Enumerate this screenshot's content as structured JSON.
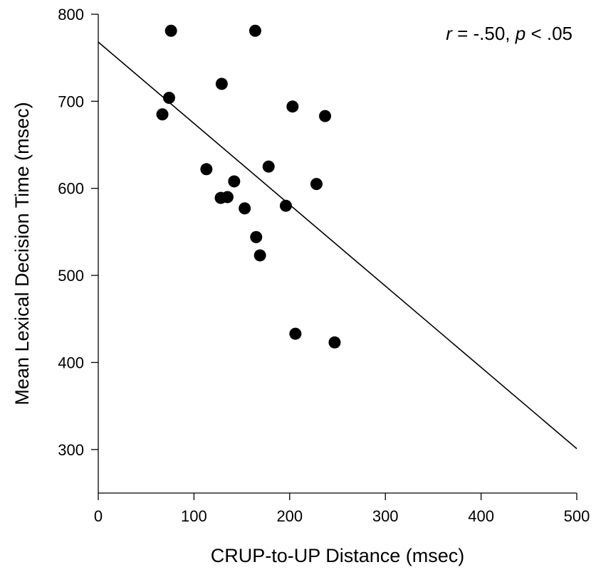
{
  "chart_data": {
    "type": "scatter",
    "title": "",
    "xlabel": "CRUP-to-UP Distance (msec)",
    "ylabel": "Mean Lexical Decision Time (msec)",
    "xlim": [
      0,
      500
    ],
    "ylim": [
      250,
      800
    ],
    "xticks": [
      0,
      100,
      200,
      300,
      400,
      500
    ],
    "yticks": [
      300,
      400,
      500,
      600,
      700,
      800
    ],
    "grid": false,
    "points": [
      {
        "x": 76,
        "y": 781
      },
      {
        "x": 164,
        "y": 781
      },
      {
        "x": 129,
        "y": 720
      },
      {
        "x": 74,
        "y": 704
      },
      {
        "x": 203,
        "y": 694
      },
      {
        "x": 237,
        "y": 683
      },
      {
        "x": 67,
        "y": 685
      },
      {
        "x": 113,
        "y": 622
      },
      {
        "x": 178,
        "y": 625
      },
      {
        "x": 142,
        "y": 608
      },
      {
        "x": 228,
        "y": 605
      },
      {
        "x": 128,
        "y": 589
      },
      {
        "x": 135,
        "y": 590
      },
      {
        "x": 153,
        "y": 577
      },
      {
        "x": 196,
        "y": 580
      },
      {
        "x": 165,
        "y": 544
      },
      {
        "x": 169,
        "y": 523
      },
      {
        "x": 206,
        "y": 433
      },
      {
        "x": 247,
        "y": 423
      }
    ],
    "regression": {
      "x": [
        0,
        500
      ],
      "y": [
        768,
        301
      ]
    },
    "annotation": {
      "r_sym": "r",
      "r_val": " = -.50, ",
      "p_sym": "p",
      "p_val": " < .05"
    }
  }
}
